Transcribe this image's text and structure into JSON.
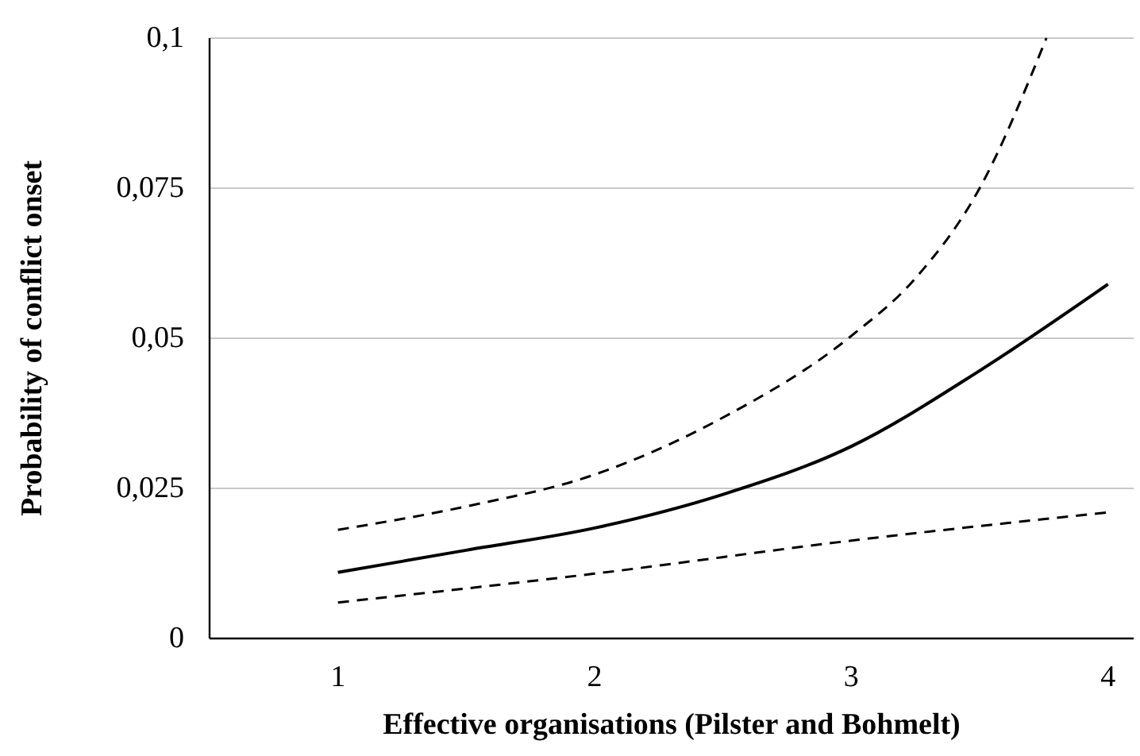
{
  "chart_data": {
    "type": "line",
    "xlabel": "Effective organisations (Pilster and Bohmelt)",
    "ylabel": "Probability of conflict onset",
    "xlim": [
      0.5,
      4.1
    ],
    "xticks": [
      1,
      2,
      3,
      4
    ],
    "ylim": [
      0,
      0.1
    ],
    "yticks": [
      {
        "value": 0,
        "label": "0"
      },
      {
        "value": 0.025,
        "label": "0,025"
      },
      {
        "value": 0.05,
        "label": "0,05"
      },
      {
        "value": 0.075,
        "label": "0,075"
      },
      {
        "value": 0.1,
        "label": "0,1"
      }
    ],
    "grid": "y",
    "series": [
      {
        "color": "#000000",
        "line_style": "solid",
        "x": [
          1,
          1.5,
          2,
          2.5,
          3,
          3.5,
          4
        ],
        "values": [
          0.011,
          0.0147,
          0.0184,
          0.024,
          0.032,
          0.0446,
          0.059
        ]
      },
      {
        "color": "#000000",
        "line_style": "dashed",
        "x": [
          1,
          1.5,
          2,
          2.5,
          3,
          3.25,
          3.5,
          3.76
        ],
        "values": [
          0.0181,
          0.022,
          0.0273,
          0.0368,
          0.0504,
          0.06,
          0.075,
          0.1
        ]
      },
      {
        "color": "#000000",
        "line_style": "dashed",
        "x": [
          1,
          2,
          3,
          4
        ],
        "values": [
          0.006,
          0.0108,
          0.0163,
          0.021
        ]
      }
    ]
  }
}
